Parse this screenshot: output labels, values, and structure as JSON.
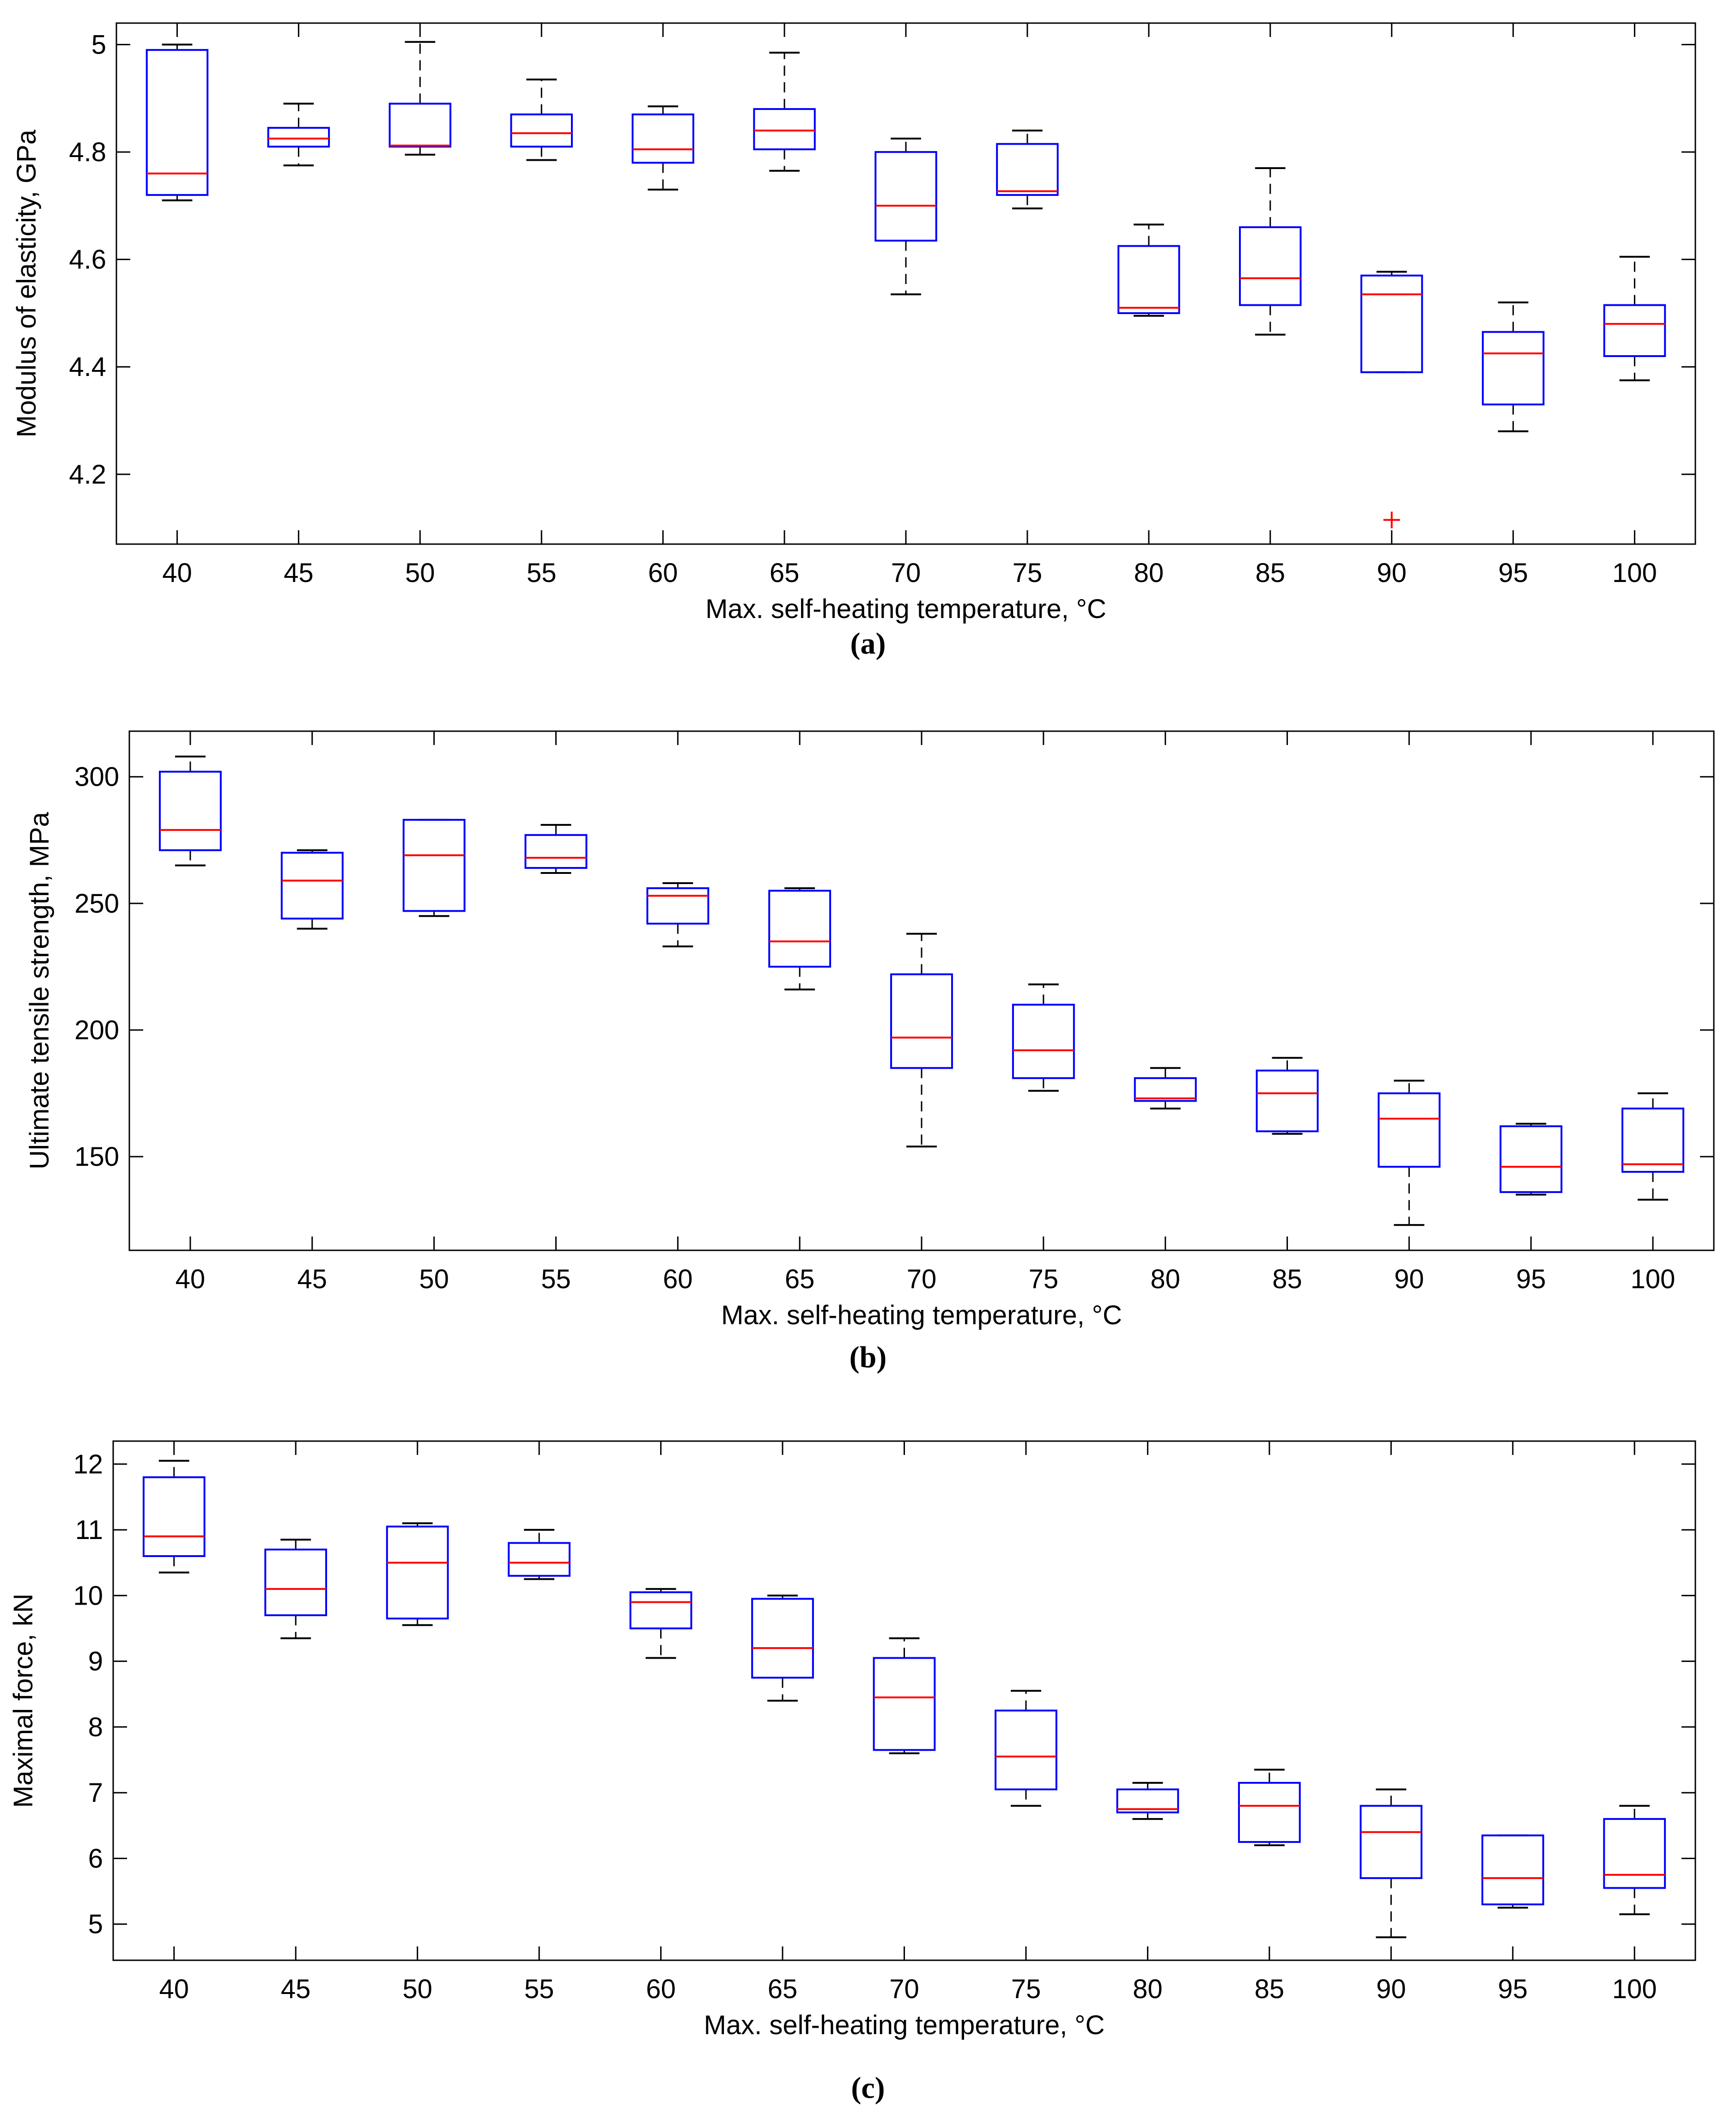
{
  "chart_data": [
    {
      "type": "box",
      "panel_label": "(a)",
      "xlabel": "Max. self-heating temperature, °C",
      "ylabel": "Modulus of elasticity, GPa",
      "categories": [
        "40",
        "45",
        "50",
        "55",
        "60",
        "65",
        "70",
        "75",
        "80",
        "85",
        "90",
        "95",
        "100"
      ],
      "ylim": [
        4.07,
        5.04
      ],
      "yticks": [
        4.2,
        4.4,
        4.6,
        4.8,
        5
      ],
      "ytick_labels": [
        "4.2",
        "4.4",
        "4.6",
        "4.8",
        "5"
      ],
      "grid": false,
      "boxes": [
        {
          "category": "40",
          "whisker_low": 4.71,
          "q1": 4.72,
          "median": 4.76,
          "q3": 4.99,
          "whisker_high": 5.0,
          "outliers": []
        },
        {
          "category": "45",
          "whisker_low": 4.775,
          "q1": 4.81,
          "median": 4.825,
          "q3": 4.845,
          "whisker_high": 4.89,
          "outliers": []
        },
        {
          "category": "50",
          "whisker_low": 4.795,
          "q1": 4.81,
          "median": 4.812,
          "q3": 4.89,
          "whisker_high": 5.005,
          "outliers": []
        },
        {
          "category": "55",
          "whisker_low": 4.785,
          "q1": 4.81,
          "median": 4.835,
          "q3": 4.87,
          "whisker_high": 4.935,
          "outliers": []
        },
        {
          "category": "60",
          "whisker_low": 4.73,
          "q1": 4.78,
          "median": 4.805,
          "q3": 4.87,
          "whisker_high": 4.885,
          "outliers": []
        },
        {
          "category": "65",
          "whisker_low": 4.765,
          "q1": 4.805,
          "median": 4.84,
          "q3": 4.88,
          "whisker_high": 4.985,
          "outliers": []
        },
        {
          "category": "70",
          "whisker_low": 4.535,
          "q1": 4.635,
          "median": 4.7,
          "q3": 4.8,
          "whisker_high": 4.825,
          "outliers": []
        },
        {
          "category": "75",
          "whisker_low": 4.695,
          "q1": 4.72,
          "median": 4.727,
          "q3": 4.815,
          "whisker_high": 4.84,
          "outliers": []
        },
        {
          "category": "80",
          "whisker_low": 4.495,
          "q1": 4.5,
          "median": 4.51,
          "q3": 4.625,
          "whisker_high": 4.665,
          "outliers": []
        },
        {
          "category": "85",
          "whisker_low": 4.46,
          "q1": 4.515,
          "median": 4.565,
          "q3": 4.66,
          "whisker_high": 4.77,
          "outliers": []
        },
        {
          "category": "90",
          "whisker_low": 4.39,
          "q1": 4.39,
          "median": 4.535,
          "q3": 4.57,
          "whisker_high": 4.577,
          "outliers": [
            4.115
          ]
        },
        {
          "category": "95",
          "whisker_low": 4.28,
          "q1": 4.33,
          "median": 4.425,
          "q3": 4.465,
          "whisker_high": 4.52,
          "outliers": []
        },
        {
          "category": "100",
          "whisker_low": 4.375,
          "q1": 4.42,
          "median": 4.48,
          "q3": 4.515,
          "whisker_high": 4.605,
          "outliers": []
        }
      ]
    },
    {
      "type": "box",
      "panel_label": "(b)",
      "xlabel": "Max. self-heating temperature, °C",
      "ylabel": "Ultimate tensile strength, MPa",
      "categories": [
        "40",
        "45",
        "50",
        "55",
        "60",
        "65",
        "70",
        "75",
        "80",
        "85",
        "90",
        "95",
        "100"
      ],
      "ylim": [
        113,
        318
      ],
      "yticks": [
        150,
        200,
        250,
        300
      ],
      "ytick_labels": [
        "150",
        "200",
        "250",
        "300"
      ],
      "grid": false,
      "boxes": [
        {
          "category": "40",
          "whisker_low": 265,
          "q1": 271,
          "median": 279,
          "q3": 302,
          "whisker_high": 308,
          "outliers": []
        },
        {
          "category": "45",
          "whisker_low": 240,
          "q1": 244,
          "median": 259,
          "q3": 270,
          "whisker_high": 271,
          "outliers": []
        },
        {
          "category": "50",
          "whisker_low": 245,
          "q1": 247,
          "median": 269,
          "q3": 283,
          "whisker_high": 283,
          "outliers": []
        },
        {
          "category": "55",
          "whisker_low": 262,
          "q1": 264,
          "median": 268,
          "q3": 277,
          "whisker_high": 281,
          "outliers": []
        },
        {
          "category": "60",
          "whisker_low": 233,
          "q1": 242,
          "median": 253,
          "q3": 256,
          "whisker_high": 258,
          "outliers": []
        },
        {
          "category": "65",
          "whisker_low": 216,
          "q1": 225,
          "median": 235,
          "q3": 255,
          "whisker_high": 256,
          "outliers": []
        },
        {
          "category": "70",
          "whisker_low": 154,
          "q1": 185,
          "median": 197,
          "q3": 222,
          "whisker_high": 238,
          "outliers": []
        },
        {
          "category": "75",
          "whisker_low": 176,
          "q1": 181,
          "median": 192,
          "q3": 210,
          "whisker_high": 218,
          "outliers": []
        },
        {
          "category": "80",
          "whisker_low": 169,
          "q1": 172,
          "median": 173,
          "q3": 181,
          "whisker_high": 185,
          "outliers": []
        },
        {
          "category": "85",
          "whisker_low": 159,
          "q1": 160,
          "median": 175,
          "q3": 184,
          "whisker_high": 189,
          "outliers": []
        },
        {
          "category": "90",
          "whisker_low": 123,
          "q1": 146,
          "median": 165,
          "q3": 175,
          "whisker_high": 180,
          "outliers": []
        },
        {
          "category": "95",
          "whisker_low": 135,
          "q1": 136,
          "median": 146,
          "q3": 162,
          "whisker_high": 163,
          "outliers": []
        },
        {
          "category": "100",
          "whisker_low": 133,
          "q1": 144,
          "median": 147,
          "q3": 169,
          "whisker_high": 175,
          "outliers": []
        }
      ]
    },
    {
      "type": "box",
      "panel_label": "(c)",
      "xlabel": "Max. self-heating temperature, °C",
      "ylabel": "Maximal force, kN",
      "categories": [
        "40",
        "45",
        "50",
        "55",
        "60",
        "65",
        "70",
        "75",
        "80",
        "85",
        "90",
        "95",
        "100"
      ],
      "ylim": [
        4.45,
        12.35
      ],
      "yticks": [
        5,
        6,
        7,
        8,
        9,
        10,
        11,
        12
      ],
      "ytick_labels": [
        "5",
        "6",
        "7",
        "8",
        "9",
        "10",
        "11",
        "12"
      ],
      "grid": false,
      "boxes": [
        {
          "category": "40",
          "whisker_low": 10.35,
          "q1": 10.6,
          "median": 10.9,
          "q3": 11.8,
          "whisker_high": 12.05,
          "outliers": []
        },
        {
          "category": "45",
          "whisker_low": 9.35,
          "q1": 9.7,
          "median": 10.1,
          "q3": 10.7,
          "whisker_high": 10.85,
          "outliers": []
        },
        {
          "category": "50",
          "whisker_low": 9.55,
          "q1": 9.65,
          "median": 10.5,
          "q3": 11.05,
          "whisker_high": 11.1,
          "outliers": []
        },
        {
          "category": "55",
          "whisker_low": 10.25,
          "q1": 10.3,
          "median": 10.5,
          "q3": 10.8,
          "whisker_high": 11.0,
          "outliers": []
        },
        {
          "category": "60",
          "whisker_low": 9.05,
          "q1": 9.5,
          "median": 9.9,
          "q3": 10.05,
          "whisker_high": 10.1,
          "outliers": []
        },
        {
          "category": "65",
          "whisker_low": 8.4,
          "q1": 8.75,
          "median": 9.2,
          "q3": 9.95,
          "whisker_high": 10.0,
          "outliers": []
        },
        {
          "category": "70",
          "whisker_low": 7.6,
          "q1": 7.65,
          "median": 8.45,
          "q3": 9.05,
          "whisker_high": 9.35,
          "outliers": []
        },
        {
          "category": "75",
          "whisker_low": 6.8,
          "q1": 7.05,
          "median": 7.55,
          "q3": 8.25,
          "whisker_high": 8.55,
          "outliers": []
        },
        {
          "category": "80",
          "whisker_low": 6.6,
          "q1": 6.7,
          "median": 6.75,
          "q3": 7.05,
          "whisker_high": 7.15,
          "outliers": []
        },
        {
          "category": "85",
          "whisker_low": 6.2,
          "q1": 6.25,
          "median": 6.8,
          "q3": 7.15,
          "whisker_high": 7.35,
          "outliers": []
        },
        {
          "category": "90",
          "whisker_low": 4.8,
          "q1": 5.7,
          "median": 6.4,
          "q3": 6.8,
          "whisker_high": 7.05,
          "outliers": []
        },
        {
          "category": "95",
          "whisker_low": 5.25,
          "q1": 5.3,
          "median": 5.7,
          "q3": 6.35,
          "whisker_high": 6.35,
          "outliers": []
        },
        {
          "category": "100",
          "whisker_low": 5.15,
          "q1": 5.55,
          "median": 5.75,
          "q3": 6.6,
          "whisker_high": 6.8,
          "outliers": []
        }
      ]
    }
  ],
  "colors": {
    "box": "#0000ff",
    "median": "#ff0000",
    "whisker": "#000000",
    "outlier": "#ff0000",
    "axes": "#000000",
    "background": "#ffffff"
  }
}
